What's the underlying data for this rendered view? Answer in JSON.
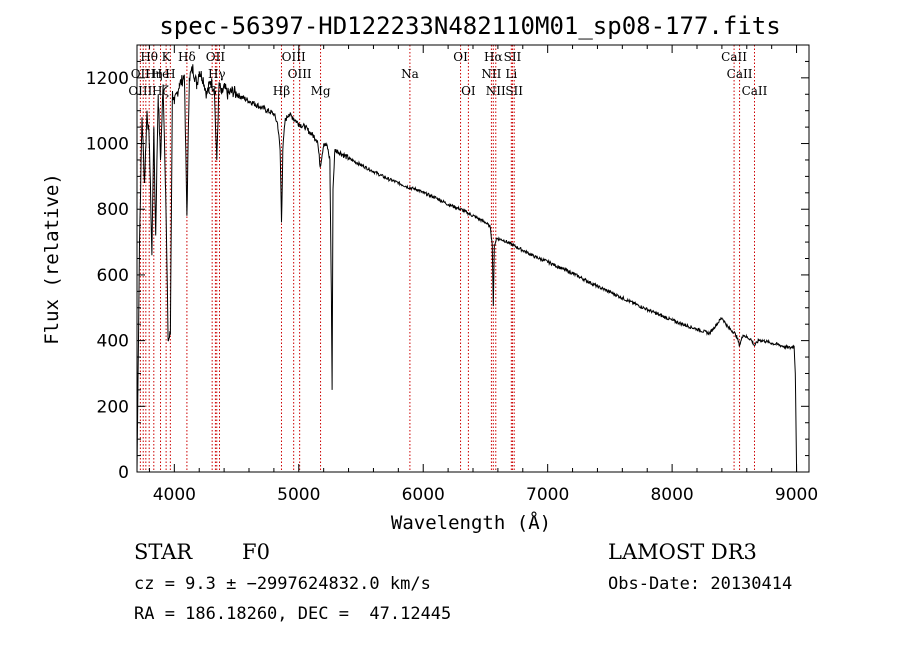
{
  "chart_data": {
    "type": "line",
    "title": "spec-56397-HD122233N482110M01_sp08-177.fits",
    "xlabel": "Wavelength (Å)",
    "ylabel": "Flux (relative)",
    "xlim": [
      3700,
      9100
    ],
    "ylim": [
      0,
      1300
    ],
    "x_ticks": [
      4000,
      5000,
      6000,
      7000,
      8000,
      9000
    ],
    "x_tick_labels": [
      "4000",
      "5000",
      "6000",
      "7000",
      "8000",
      "9000"
    ],
    "y_ticks": [
      0,
      200,
      400,
      600,
      800,
      1000,
      1200
    ],
    "y_tick_labels": [
      "0",
      "200",
      "400",
      "600",
      "800",
      "1000",
      "1200"
    ],
    "grid": false,
    "series": [
      {
        "name": "flux",
        "x": [
          3700,
          3720,
          3740,
          3760,
          3780,
          3800,
          3820,
          3835,
          3850,
          3870,
          3889,
          3910,
          3930,
          3950,
          3968,
          3985,
          4000,
          4020,
          4040,
          4060,
          4080,
          4101,
          4120,
          4150,
          4180,
          4200,
          4230,
          4260,
          4290,
          4320,
          4341,
          4360,
          4380,
          4400,
          4430,
          4470,
          4500,
          4550,
          4600,
          4650,
          4700,
          4750,
          4800,
          4830,
          4850,
          4861,
          4872,
          4890,
          4920,
          4950,
          5000,
          5050,
          5100,
          5150,
          5172,
          5200,
          5230,
          5250,
          5262,
          5268,
          5275,
          5290,
          5320,
          5360,
          5400,
          5450,
          5500,
          5600,
          5700,
          5800,
          5893,
          5950,
          6000,
          6100,
          6200,
          6300,
          6400,
          6500,
          6540,
          6555,
          6563,
          6572,
          6590,
          6650,
          6700,
          6800,
          6900,
          7000,
          7100,
          7200,
          7300,
          7400,
          7500,
          7600,
          7700,
          7800,
          7900,
          8000,
          8100,
          8200,
          8300,
          8400,
          8450,
          8498,
          8520,
          8542,
          8570,
          8600,
          8630,
          8662,
          8700,
          8750,
          8800,
          8850,
          8900,
          8950,
          8980,
          8990,
          9000
        ],
        "y": [
          0,
          700,
          1080,
          880,
          1100,
          1000,
          660,
          1050,
          720,
          1150,
          950,
          1180,
          860,
          400,
          420,
          1160,
          1120,
          1150,
          1180,
          1190,
          1210,
          780,
          1200,
          1230,
          1180,
          1220,
          1200,
          1150,
          1190,
          1170,
          950,
          1180,
          1150,
          1170,
          1150,
          1160,
          1150,
          1140,
          1130,
          1120,
          1110,
          1100,
          1090,
          1060,
          980,
          760,
          980,
          1070,
          1090,
          1080,
          1060,
          1050,
          1030,
          1010,
          930,
          1000,
          990,
          950,
          540,
          250,
          860,
          980,
          975,
          965,
          955,
          945,
          935,
          915,
          895,
          880,
          865,
          860,
          850,
          835,
          815,
          800,
          780,
          760,
          745,
          690,
          505,
          690,
          712,
          705,
          695,
          675,
          655,
          640,
          622,
          605,
          585,
          565,
          548,
          530,
          512,
          495,
          478,
          462,
          448,
          435,
          422,
          470,
          440,
          425,
          412,
          385,
          418,
          410,
          405,
          385,
          402,
          398,
          392,
          388,
          382,
          378,
          384,
          300,
          0
        ]
      }
    ],
    "line_labels": [
      {
        "text": "Hθ",
        "x": 3798,
        "row": 1
      },
      {
        "text": "K",
        "x": 3934,
        "row": 1
      },
      {
        "text": "Hδ",
        "x": 4101,
        "row": 1
      },
      {
        "text": "OII",
        "x": 4330,
        "row": 1
      },
      {
        "text": "OIII",
        "x": 4959,
        "row": 1
      },
      {
        "text": "OI",
        "x": 6300,
        "row": 1
      },
      {
        "text": "Hα",
        "x": 6563,
        "row": 1
      },
      {
        "text": "SII",
        "x": 6717,
        "row": 1
      },
      {
        "text": "CaII",
        "x": 8498,
        "row": 1
      },
      {
        "text": "OII",
        "x": 3727,
        "row": 2
      },
      {
        "text": "Hη",
        "x": 3835,
        "row": 2
      },
      {
        "text": "He",
        "x": 3889,
        "row": 2
      },
      {
        "text": "H",
        "x": 3968,
        "row": 2
      },
      {
        "text": "Hγ",
        "x": 4341,
        "row": 2
      },
      {
        "text": "OIII",
        "x": 5007,
        "row": 2
      },
      {
        "text": "Na",
        "x": 5893,
        "row": 2
      },
      {
        "text": "NII",
        "x": 6548,
        "row": 2
      },
      {
        "text": "Li",
        "x": 6708,
        "row": 2
      },
      {
        "text": "CaII",
        "x": 8542,
        "row": 2
      },
      {
        "text": "OIII",
        "x": 3727,
        "row": 3
      },
      {
        "text": "Hζ",
        "x": 3889,
        "row": 3
      },
      {
        "text": "G",
        "x": 4304,
        "row": 3
      },
      {
        "text": "Hβ",
        "x": 4861,
        "row": 3
      },
      {
        "text": "Mg",
        "x": 5175,
        "row": 3
      },
      {
        "text": "OI",
        "x": 6363,
        "row": 3
      },
      {
        "text": "NII",
        "x": 6583,
        "row": 3
      },
      {
        "text": "SII",
        "x": 6731,
        "row": 3
      },
      {
        "text": "CaII",
        "x": 8662,
        "row": 3
      }
    ],
    "vlines_x": [
      3727,
      3750,
      3771,
      3798,
      3835,
      3889,
      3934,
      3968,
      4101,
      4304,
      4330,
      4341,
      4363,
      4861,
      4959,
      5007,
      5175,
      5893,
      6300,
      6363,
      6548,
      6563,
      6583,
      6708,
      6717,
      6731,
      8498,
      8542,
      8662
    ],
    "vline_color": "#cc0000"
  },
  "info": {
    "object_class": "STAR",
    "subclass": "F0",
    "cz_text": "cz = 9.3 ± −2997624832.0 km/s",
    "coords_text": "RA = 186.18260, DEC =  47.12445",
    "survey": "LAMOST DR3",
    "obs_date": "Obs-Date: 20130414"
  }
}
